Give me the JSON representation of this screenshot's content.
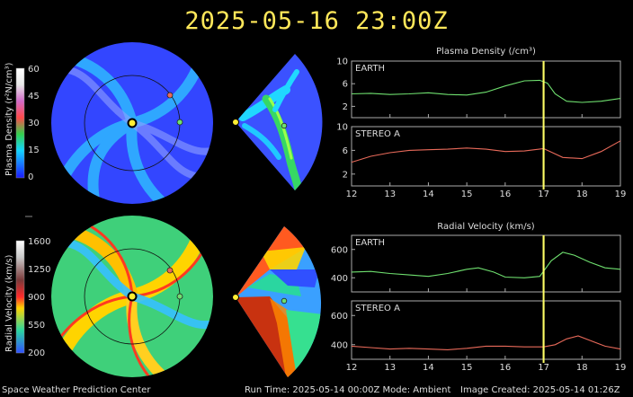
{
  "header": {
    "title": "2025-05-16  23:00Z"
  },
  "footer": {
    "center": "Space Weather Prediction Center",
    "run_time": "Run Time: 2025-05-14 00:00Z  Mode: Ambient",
    "created": "Image Created: 2025-05-14 01:26Z"
  },
  "colors": {
    "earth": "#6fe06f",
    "stereo": "#e96a5a",
    "now_line": "#ffff66"
  },
  "density_scale": {
    "label": "Plasma Density (r²N/cm³)",
    "ticks": [
      "0",
      "15",
      "30",
      "45",
      "60"
    ]
  },
  "velocity_scale": {
    "label": "Radial Velocity (km/s)",
    "ticks": [
      "200",
      "550",
      "900",
      "1250",
      "1600"
    ]
  },
  "chart_data": [
    {
      "type": "line",
      "title": "Plasma Density (/cm³)",
      "panel_label": "EARTH",
      "xlim": [
        12,
        19
      ],
      "ylim": [
        0,
        10
      ],
      "yticks": [
        "2",
        "6",
        "10"
      ],
      "xticks": [
        "12",
        "13",
        "14",
        "15",
        "16",
        "17",
        "18",
        "19"
      ],
      "now_x": 17,
      "series": [
        {
          "color": "#6fe06f",
          "x": [
            12,
            12.5,
            13,
            13.5,
            14,
            14.5,
            15,
            15.5,
            16,
            16.5,
            16.9,
            17.1,
            17.3,
            17.6,
            18,
            18.5,
            19
          ],
          "y": [
            4.2,
            4.3,
            4.1,
            4.2,
            4.4,
            4.1,
            4.0,
            4.5,
            5.6,
            6.5,
            6.6,
            6.1,
            4.2,
            2.9,
            2.7,
            2.9,
            3.4
          ]
        }
      ]
    },
    {
      "type": "line",
      "panel_label": "STEREO A",
      "xlim": [
        12,
        19
      ],
      "ylim": [
        0,
        10
      ],
      "yticks": [
        "2",
        "6",
        "10"
      ],
      "xticks": [
        "12",
        "13",
        "14",
        "15",
        "16",
        "17",
        "18",
        "19"
      ],
      "now_x": 17,
      "series": [
        {
          "color": "#e96a5a",
          "x": [
            12,
            12.5,
            13,
            13.5,
            14,
            14.5,
            15,
            15.5,
            16,
            16.5,
            17,
            17.5,
            18,
            18.5,
            19
          ],
          "y": [
            4.0,
            5.0,
            5.6,
            6.0,
            6.1,
            6.2,
            6.4,
            6.2,
            5.8,
            5.9,
            6.3,
            4.8,
            4.6,
            5.8,
            7.6
          ]
        }
      ]
    },
    {
      "type": "line",
      "title": "Radial Velocity (km/s)",
      "panel_label": "EARTH",
      "xlim": [
        12,
        19
      ],
      "ylim": [
        300,
        700
      ],
      "yticks": [
        "400",
        "600"
      ],
      "xticks": [
        "12",
        "13",
        "14",
        "15",
        "16",
        "17",
        "18",
        "19"
      ],
      "now_x": 17,
      "series": [
        {
          "color": "#6fe06f",
          "x": [
            12,
            12.5,
            13,
            13.5,
            14,
            14.5,
            15,
            15.3,
            15.7,
            16,
            16.5,
            16.9,
            17.2,
            17.5,
            17.8,
            18.2,
            18.6,
            19
          ],
          "y": [
            440,
            445,
            430,
            420,
            410,
            430,
            460,
            470,
            440,
            405,
            400,
            410,
            520,
            580,
            560,
            510,
            470,
            460
          ]
        }
      ]
    },
    {
      "type": "line",
      "panel_label": "STEREO A",
      "xlim": [
        12,
        19
      ],
      "ylim": [
        300,
        700
      ],
      "yticks": [
        "400",
        "600"
      ],
      "xticks": [
        "12",
        "13",
        "14",
        "15",
        "16",
        "17",
        "18",
        "19"
      ],
      "now_x": 17,
      "series": [
        {
          "color": "#e96a5a",
          "x": [
            12,
            12.5,
            13,
            13.5,
            14,
            14.5,
            15,
            15.5,
            16,
            16.5,
            17,
            17.3,
            17.6,
            17.9,
            18.2,
            18.6,
            19
          ],
          "y": [
            390,
            380,
            370,
            375,
            370,
            365,
            375,
            390,
            390,
            385,
            385,
            400,
            440,
            460,
            430,
            390,
            370
          ]
        }
      ]
    }
  ]
}
